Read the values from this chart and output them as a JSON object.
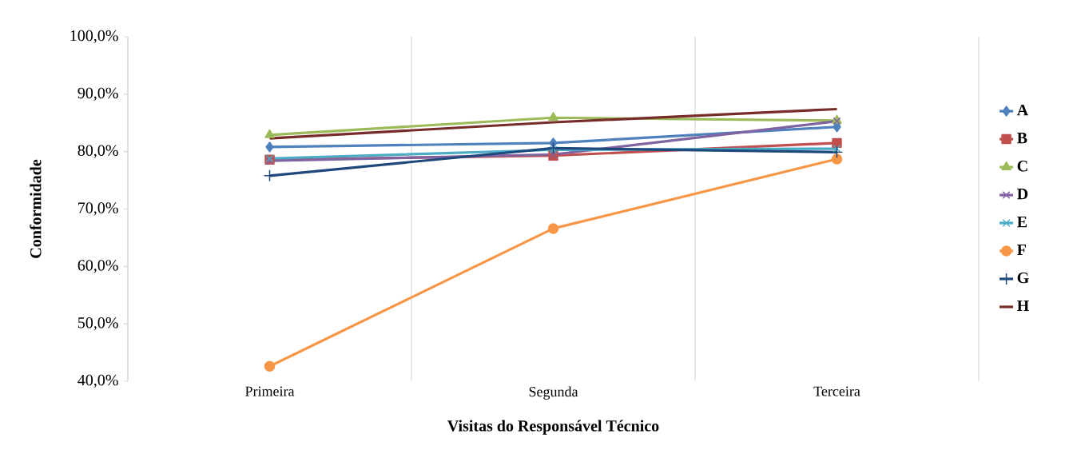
{
  "chart_data": {
    "type": "line",
    "xlabel": "Visitas do Responsável Técnico",
    "ylabel": "Conformidade",
    "categories": [
      "Primeira",
      "Segunda",
      "Terceira"
    ],
    "ylim": [
      40,
      100
    ],
    "yticks": [
      {
        "value": 40,
        "label": "40,0%"
      },
      {
        "value": 50,
        "label": "50,0%"
      },
      {
        "value": 60,
        "label": "60,0%"
      },
      {
        "value": 70,
        "label": "70,0%"
      },
      {
        "value": 80,
        "label": "80,0%"
      },
      {
        "value": 90,
        "label": "90,0%"
      },
      {
        "value": 100,
        "label": "100,0%"
      }
    ],
    "grid": "x",
    "legend": "right",
    "series": [
      {
        "name": "A",
        "color": "#4f81bd",
        "marker": "diamond",
        "values": [
          80.8,
          81.5,
          84.3
        ]
      },
      {
        "name": "B",
        "color": "#c0504d",
        "marker": "square",
        "values": [
          78.6,
          79.3,
          81.5
        ]
      },
      {
        "name": "C",
        "color": "#9bbb59",
        "marker": "triangle",
        "values": [
          82.9,
          85.9,
          85.4
        ]
      },
      {
        "name": "D",
        "color": "#8064a2",
        "marker": "cross",
        "values": [
          78.4,
          79.5,
          85.3
        ]
      },
      {
        "name": "E",
        "color": "#4bacc6",
        "marker": "cross",
        "values": [
          78.8,
          80.3,
          80.5
        ]
      },
      {
        "name": "F",
        "color": "#f79646",
        "marker": "circle",
        "values": [
          42.6,
          66.6,
          78.7
        ]
      },
      {
        "name": "G",
        "color": "#1f497d",
        "marker": "plus",
        "values": [
          75.8,
          80.6,
          79.9
        ]
      },
      {
        "name": "H",
        "color": "#772c2a",
        "marker": "none",
        "values": [
          82.3,
          85.1,
          87.4
        ]
      }
    ]
  }
}
